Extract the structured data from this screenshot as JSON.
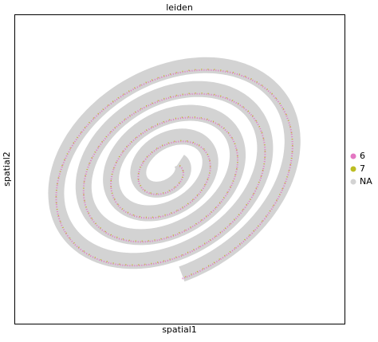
{
  "chart_data": {
    "type": "scatter",
    "title": "leiden",
    "xlabel": "spatial1",
    "ylabel": "spatial2",
    "series": [
      {
        "name": "6",
        "color": "#e377c2"
      },
      {
        "name": "7",
        "color": "#bcbd22"
      },
      {
        "name": "NA",
        "color": "#d3d3d3"
      }
    ],
    "legend": "right"
  }
}
